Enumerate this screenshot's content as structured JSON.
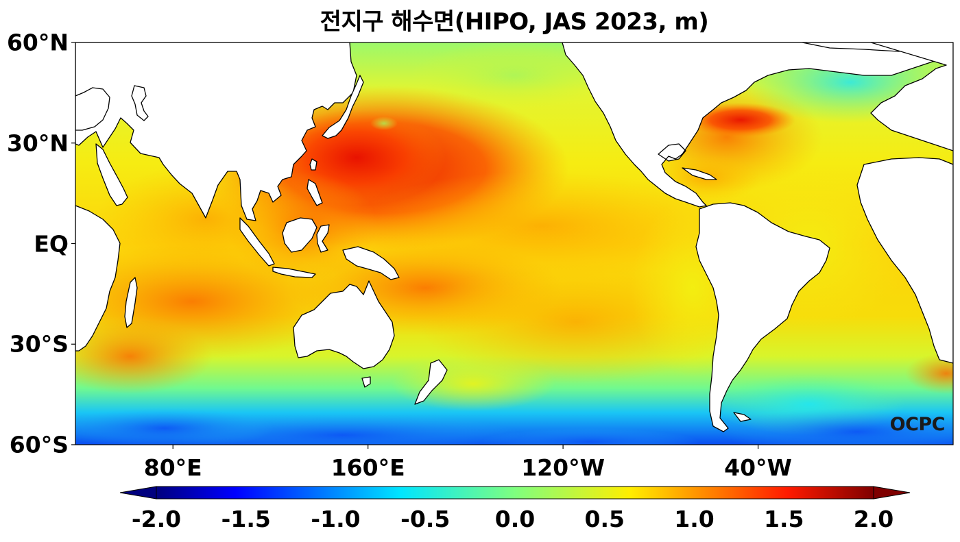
{
  "title": "전지구 해수면(HIPO, JAS 2023, m)",
  "map": {
    "projection": "equirectangular",
    "lon_range": [
      40,
      400
    ],
    "lat_range": [
      -60,
      60
    ],
    "variable": "sea level anomaly",
    "unit": "m",
    "lat_ticks": [
      {
        "lat": 60,
        "label": "60°N"
      },
      {
        "lat": 30,
        "label": "30°N"
      },
      {
        "lat": 0,
        "label": "EQ"
      },
      {
        "lat": -30,
        "label": "30°S"
      },
      {
        "lat": -60,
        "label": "60°S"
      }
    ],
    "lon_ticks": [
      {
        "lon": 80,
        "label": "80°E"
      },
      {
        "lon": 160,
        "label": "160°E"
      },
      {
        "lon": 240,
        "label": "120°W"
      },
      {
        "lon": 320,
        "label": "40°W"
      }
    ],
    "colorbar": {
      "min": -2.0,
      "max": 2.0,
      "extend": "both",
      "colormap": "jet",
      "ticks": [
        {
          "value": -2.0,
          "label": "-2.0"
        },
        {
          "value": -1.5,
          "label": "-1.5"
        },
        {
          "value": -1.0,
          "label": "-1.0"
        },
        {
          "value": -0.5,
          "label": "-0.5"
        },
        {
          "value": 0.0,
          "label": "0.0"
        },
        {
          "value": 0.5,
          "label": "0.5"
        },
        {
          "value": 1.0,
          "label": "1.0"
        },
        {
          "value": 1.5,
          "label": "1.5"
        },
        {
          "value": 2.0,
          "label": "2.0"
        }
      ]
    },
    "watermark": "OCPC"
  }
}
